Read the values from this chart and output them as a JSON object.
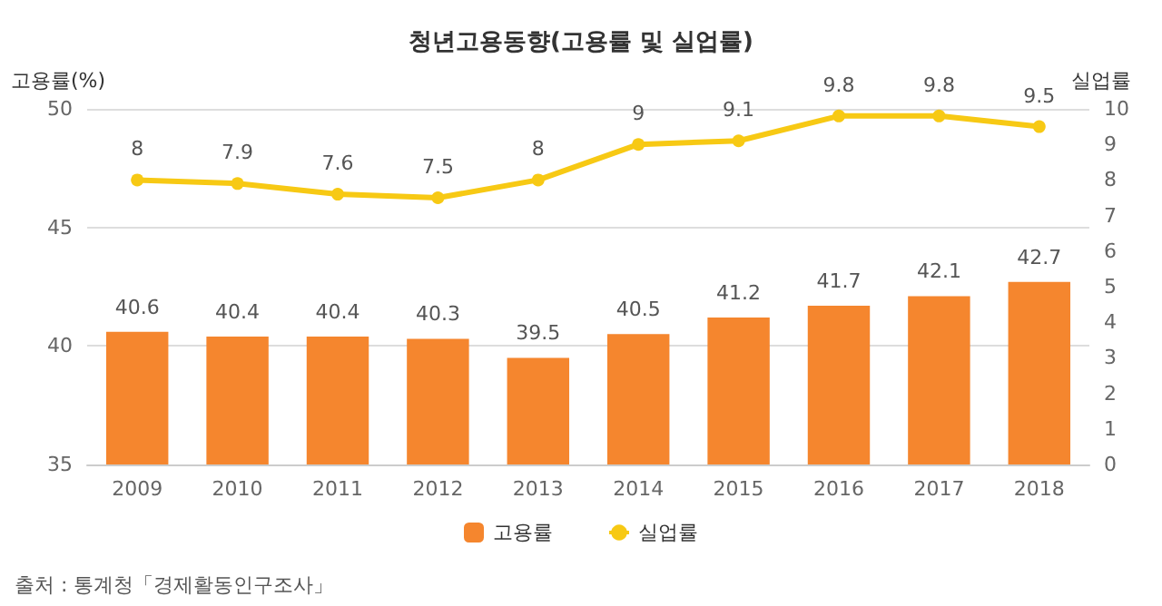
{
  "chart_data": {
    "type": "bar",
    "title": "청년고용동향(고용률 및 실업률)",
    "categories": [
      "2009",
      "2010",
      "2011",
      "2012",
      "2013",
      "2014",
      "2015",
      "2016",
      "2017",
      "2018"
    ],
    "series": [
      {
        "name": "고용률",
        "color": "#f5862e",
        "values": [
          40.6,
          40.4,
          40.4,
          40.3,
          39.5,
          40.5,
          41.2,
          41.7,
          42.1,
          42.7
        ]
      },
      {
        "name": "실업률",
        "type": "line",
        "axis": "y2",
        "color": "#f7c914",
        "values": [
          8,
          7.9,
          7.6,
          7.5,
          8,
          9,
          9.1,
          9.8,
          9.8,
          9.5
        ]
      }
    ],
    "ylabel": "고용률(%)",
    "y2label": "실업률",
    "ylim": [
      35,
      50
    ],
    "yticks": [
      35,
      40,
      45,
      50
    ],
    "y2lim": [
      0,
      10
    ],
    "y2ticks": [
      0,
      1,
      2,
      3,
      4,
      5,
      6,
      7,
      8,
      9,
      10
    ],
    "grid": "y",
    "legend": "bottom",
    "marker": "circle",
    "data_labels": true,
    "annotations": [
      "출처 : 통계청「경제활동인구조사」"
    ]
  }
}
